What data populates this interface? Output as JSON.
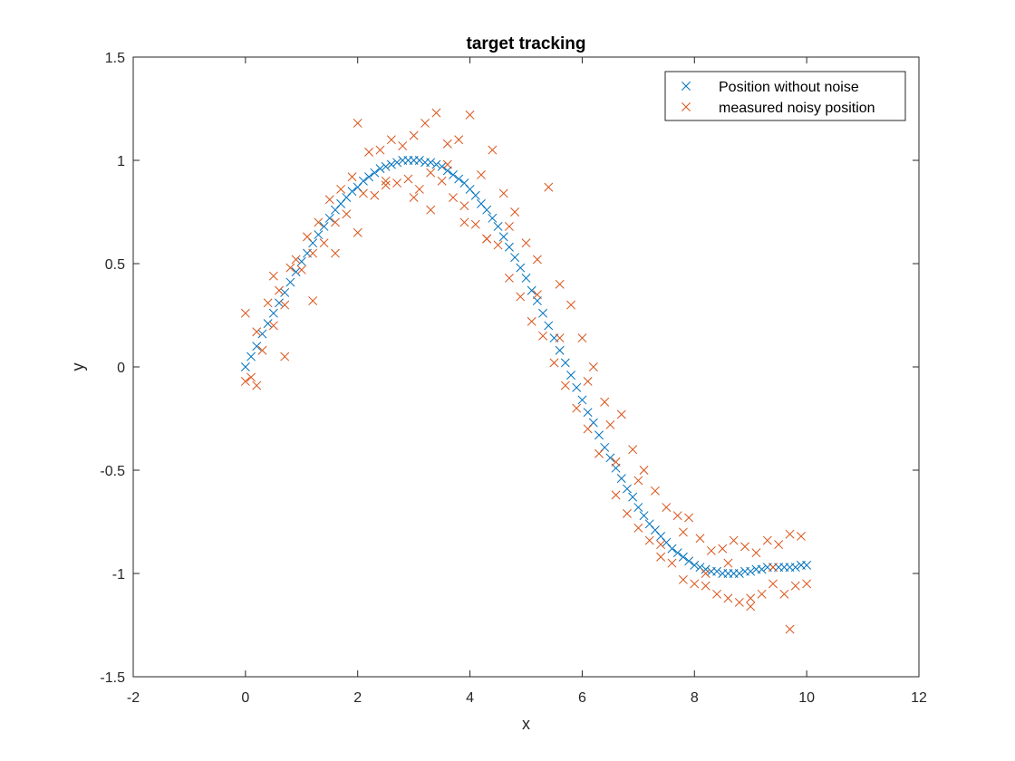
{
  "chart_data": {
    "type": "scatter",
    "title": "target tracking",
    "xlabel": "x",
    "ylabel": "y",
    "xlim": [
      -2,
      12
    ],
    "ylim": [
      -1.5,
      1.5
    ],
    "xticks": [
      -2,
      0,
      2,
      4,
      6,
      8,
      10,
      12
    ],
    "yticks": [
      -1.5,
      -1,
      -0.5,
      0,
      0.5,
      1,
      1.5
    ],
    "xtick_labels": [
      "-2",
      "0",
      "2",
      "4",
      "6",
      "8",
      "10",
      "12"
    ],
    "ytick_labels": [
      "-1.5",
      "-1",
      "-0.5",
      "0",
      "0.5",
      "1",
      "1.5"
    ],
    "grid": false,
    "box": true,
    "legend_position": "top-right",
    "marker": "x",
    "series": [
      {
        "name": "Position without noise",
        "color": "#0072BD",
        "x": [
          0,
          0.1,
          0.2,
          0.3,
          0.4,
          0.5,
          0.6,
          0.7,
          0.8,
          0.9,
          1.0,
          1.1,
          1.2,
          1.3,
          1.4,
          1.5,
          1.6,
          1.7,
          1.8,
          1.9,
          2.0,
          2.1,
          2.2,
          2.3,
          2.4,
          2.5,
          2.6,
          2.7,
          2.8,
          2.9,
          3.0,
          3.1,
          3.2,
          3.3,
          3.4,
          3.5,
          3.6,
          3.7,
          3.8,
          3.9,
          4.0,
          4.1,
          4.2,
          4.3,
          4.4,
          4.5,
          4.6,
          4.7,
          4.8,
          4.9,
          5.0,
          5.1,
          5.2,
          5.3,
          5.4,
          5.5,
          5.6,
          5.7,
          5.8,
          5.9,
          6.0,
          6.1,
          6.2,
          6.3,
          6.4,
          6.5,
          6.6,
          6.7,
          6.8,
          6.9,
          7.0,
          7.1,
          7.2,
          7.3,
          7.4,
          7.5,
          7.6,
          7.7,
          7.8,
          7.9,
          8.0,
          8.1,
          8.2,
          8.3,
          8.4,
          8.5,
          8.6,
          8.7,
          8.8,
          8.9,
          9.0,
          9.1,
          9.2,
          9.3,
          9.4,
          9.5,
          9.6,
          9.7,
          9.8,
          9.9,
          10.0
        ],
        "y": [
          0.0,
          0.05,
          0.1,
          0.16,
          0.21,
          0.26,
          0.31,
          0.36,
          0.41,
          0.46,
          0.51,
          0.55,
          0.6,
          0.64,
          0.68,
          0.72,
          0.76,
          0.79,
          0.82,
          0.85,
          0.87,
          0.9,
          0.92,
          0.94,
          0.96,
          0.97,
          0.98,
          0.99,
          1.0,
          1.0,
          1.0,
          1.0,
          0.99,
          0.99,
          0.98,
          0.97,
          0.95,
          0.93,
          0.91,
          0.89,
          0.86,
          0.83,
          0.79,
          0.76,
          0.72,
          0.68,
          0.63,
          0.58,
          0.53,
          0.48,
          0.43,
          0.37,
          0.32,
          0.26,
          0.2,
          0.14,
          0.08,
          0.02,
          -0.04,
          -0.1,
          -0.16,
          -0.22,
          -0.27,
          -0.33,
          -0.39,
          -0.44,
          -0.49,
          -0.54,
          -0.59,
          -0.63,
          -0.68,
          -0.72,
          -0.76,
          -0.79,
          -0.82,
          -0.85,
          -0.88,
          -0.9,
          -0.92,
          -0.94,
          -0.96,
          -0.97,
          -0.98,
          -0.99,
          -0.99,
          -1.0,
          -1.0,
          -1.0,
          -1.0,
          -0.99,
          -0.99,
          -0.98,
          -0.98,
          -0.97,
          -0.97,
          -0.97,
          -0.97,
          -0.97,
          -0.97,
          -0.96,
          -0.96
        ]
      },
      {
        "name": "measured noisy position",
        "color": "#D95319",
        "x": [
          0,
          0.1,
          0.2,
          0.3,
          0.4,
          0.5,
          0.6,
          0.7,
          0.8,
          0.9,
          1.0,
          1.1,
          1.2,
          1.3,
          1.4,
          1.5,
          1.6,
          1.7,
          1.8,
          1.9,
          2.0,
          2.1,
          2.2,
          2.3,
          2.4,
          2.5,
          2.6,
          2.7,
          2.8,
          2.9,
          3.0,
          3.1,
          3.2,
          3.3,
          3.4,
          3.5,
          3.6,
          3.7,
          3.8,
          3.9,
          4.0,
          4.1,
          4.2,
          4.3,
          4.4,
          4.5,
          4.6,
          4.7,
          4.8,
          4.9,
          5.0,
          5.1,
          5.2,
          5.3,
          5.4,
          5.5,
          5.6,
          5.7,
          5.8,
          5.9,
          6.0,
          6.1,
          6.2,
          6.3,
          6.4,
          6.5,
          6.6,
          6.7,
          6.8,
          6.9,
          7.0,
          7.1,
          7.2,
          7.3,
          7.4,
          7.5,
          7.6,
          7.7,
          7.8,
          7.9,
          8.0,
          8.1,
          8.2,
          8.3,
          8.4,
          8.5,
          8.6,
          8.7,
          8.8,
          8.9,
          9.0,
          9.1,
          9.2,
          9.3,
          9.4,
          9.5,
          9.6,
          9.7,
          9.8,
          9.9,
          10.0,
          0.0,
          0.2,
          0.5,
          0.7,
          1.2,
          1.6,
          2.0,
          2.5,
          3.0,
          3.3,
          3.6,
          3.9,
          4.3,
          4.7,
          5.2,
          5.6,
          6.1,
          6.6,
          7.0,
          7.4,
          7.8,
          8.2,
          8.6,
          9.0,
          9.4,
          9.7
        ],
        "y": [
          0.26,
          -0.05,
          0.17,
          0.08,
          0.31,
          0.2,
          0.37,
          0.3,
          0.48,
          0.52,
          0.47,
          0.63,
          0.55,
          0.7,
          0.6,
          0.81,
          0.7,
          0.86,
          0.74,
          0.92,
          1.18,
          0.84,
          1.04,
          0.83,
          1.05,
          0.88,
          1.1,
          0.89,
          1.07,
          0.91,
          1.12,
          0.86,
          1.18,
          0.94,
          1.23,
          0.9,
          1.08,
          0.82,
          1.1,
          0.78,
          1.22,
          0.69,
          0.93,
          0.62,
          1.05,
          0.59,
          0.84,
          0.43,
          0.75,
          0.34,
          0.6,
          0.22,
          0.52,
          0.15,
          0.87,
          0.02,
          0.4,
          -0.09,
          0.3,
          -0.2,
          0.14,
          -0.3,
          0.0,
          -0.42,
          -0.17,
          -0.28,
          -0.62,
          -0.23,
          -0.71,
          -0.4,
          -0.78,
          -0.5,
          -0.84,
          -0.6,
          -0.86,
          -0.68,
          -0.95,
          -0.72,
          -1.03,
          -0.73,
          -1.05,
          -0.83,
          -1.0,
          -0.89,
          -1.1,
          -0.88,
          -1.12,
          -0.84,
          -1.14,
          -0.87,
          -1.16,
          -0.9,
          -1.1,
          -0.84,
          -1.05,
          -0.86,
          -1.1,
          -0.81,
          -1.06,
          -0.82,
          -1.05,
          -0.07,
          -0.09,
          0.44,
          0.05,
          0.32,
          0.55,
          0.65,
          0.9,
          0.82,
          0.76,
          0.98,
          0.7,
          0.62,
          0.68,
          0.35,
          0.14,
          -0.07,
          -0.46,
          -0.55,
          -0.92,
          -0.8,
          -1.06,
          -0.95,
          -1.12,
          -0.97,
          -1.27
        ]
      }
    ]
  }
}
